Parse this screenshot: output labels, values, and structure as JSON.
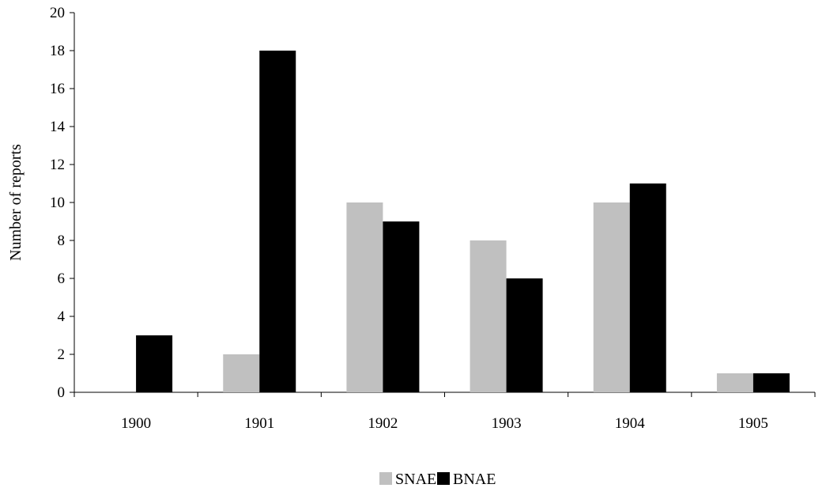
{
  "chart_data": {
    "type": "bar",
    "title": "",
    "xlabel": "",
    "ylabel": "Number of reports",
    "categories": [
      "1900",
      "1901",
      "1902",
      "1903",
      "1904",
      "1905"
    ],
    "series": [
      {
        "name": "SNAE",
        "color": "#c0c0c0",
        "values": [
          0,
          2,
          10,
          8,
          10,
          1
        ]
      },
      {
        "name": "BNAE",
        "color": "#000000",
        "values": [
          3,
          18,
          9,
          6,
          11,
          1
        ]
      }
    ],
    "ylim": [
      0,
      20
    ],
    "yticks": [
      "0",
      "2",
      "4",
      "6",
      "8",
      "10",
      "12",
      "14",
      "16",
      "18",
      "20"
    ],
    "grid": false,
    "legend": "bottom-center"
  }
}
